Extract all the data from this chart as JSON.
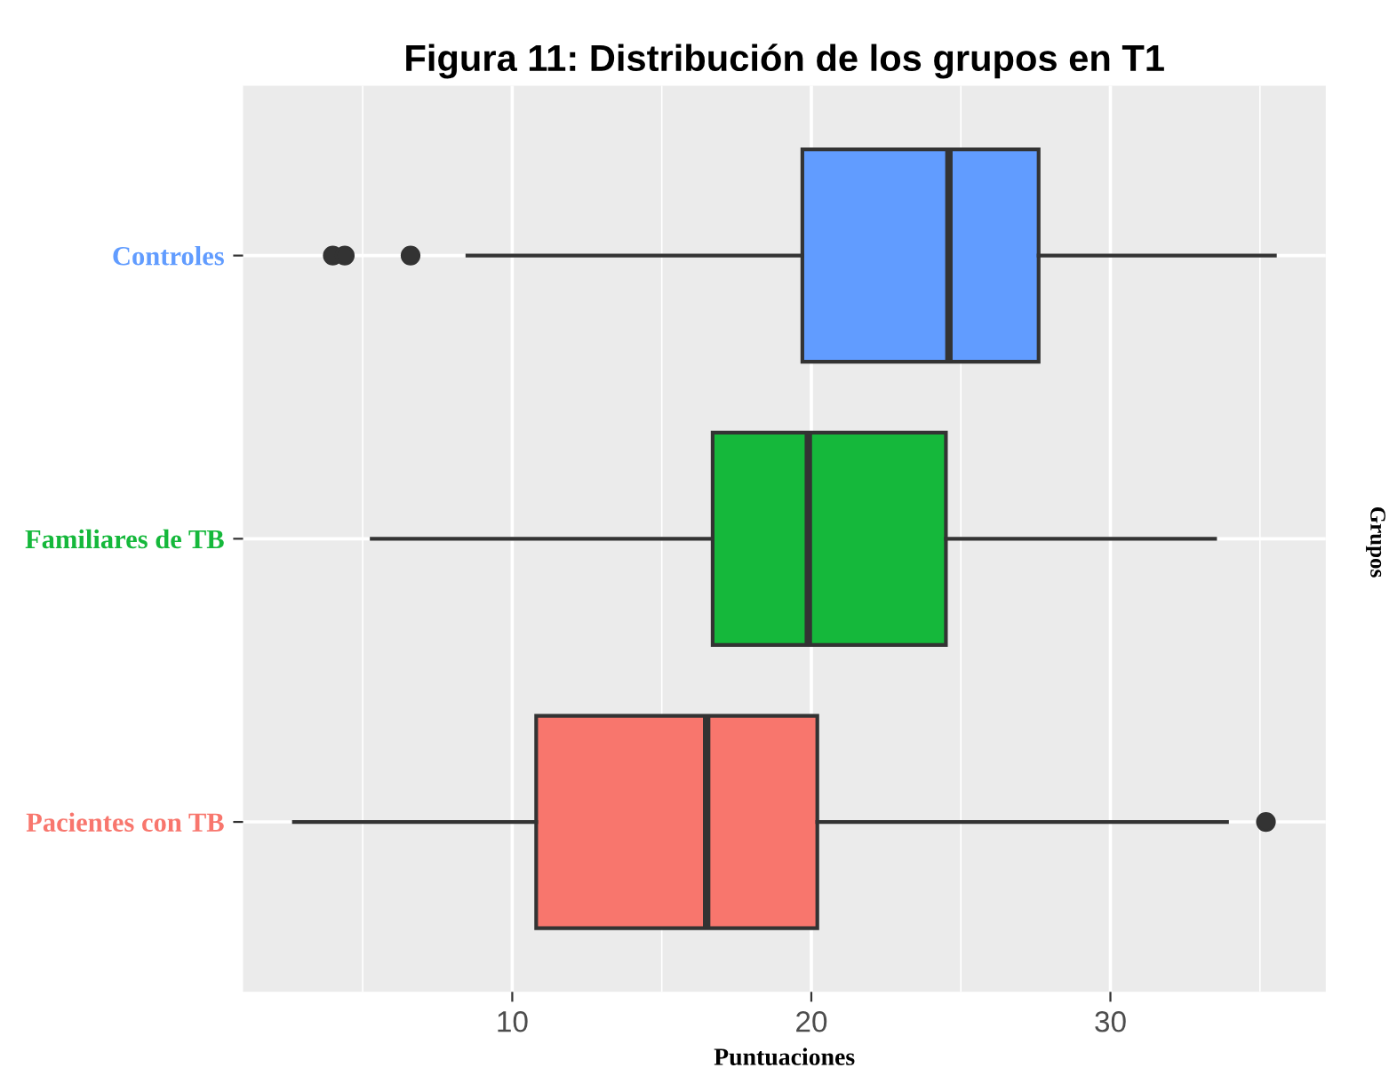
{
  "chart_data": {
    "type": "box",
    "title": "Figura 11: Distribución de los grupos en T1",
    "xlabel": "Puntuaciones",
    "y2label": "Grupos",
    "orientation": "horizontal",
    "categories": [
      "Controles",
      "Familiares de TB",
      "Pacientes con TB"
    ],
    "colors": [
      "#619cff",
      "#15b83b",
      "#f8766d"
    ],
    "boxes": [
      {
        "low": 8.5,
        "q1": 19.7,
        "median": 24.6,
        "q3": 27.6,
        "high": 35.5,
        "outliers": [
          4.0,
          4.4,
          6.6
        ]
      },
      {
        "low": 5.3,
        "q1": 16.7,
        "median": 19.9,
        "q3": 24.5,
        "high": 33.5
      },
      {
        "low": 2.7,
        "q1": 10.8,
        "median": 16.5,
        "q3": 20.2,
        "high": 33.9,
        "outliers": [
          35.2
        ]
      }
    ],
    "xlim": [
      1.0,
      37.2
    ],
    "xticks": [
      {
        "value": 5,
        "label": null
      },
      10,
      {
        "value": 15,
        "label": null
      },
      20,
      {
        "value": 25,
        "label": null
      },
      30,
      {
        "value": 35,
        "label": null
      }
    ],
    "grid": true,
    "legend": false
  }
}
